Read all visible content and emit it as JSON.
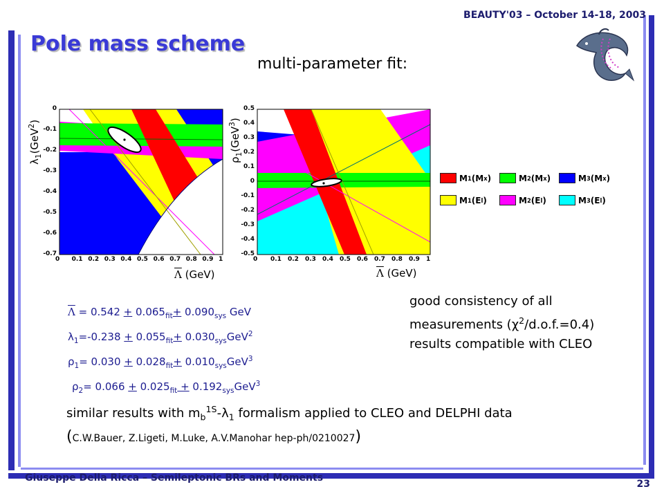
{
  "header": {
    "conference": "BEAUTY'03 – October 14-18, 2003"
  },
  "title": "Pole mass scheme",
  "subtitle": "multi-parameter fit:",
  "plots": [
    {
      "ylabel_sym": "λ",
      "ylabel_sub": "1",
      "ylabel_unit": "(GeV",
      "ylabel_pow": "2",
      "ylabel_close": ")",
      "xlabel_sym": "Λ",
      "xlabel_unit": " (GeV",
      "xlabel_close": ")",
      "x_ticks": [
        "0",
        "0.1",
        "0.2",
        "0.3",
        "0.4",
        "0.5",
        "0.6",
        "0.7",
        "0.8",
        "0.9",
        "1"
      ],
      "y_ticks": [
        "0",
        "-0.1",
        "-0.2",
        "-0.3",
        "-0.4",
        "-0.5",
        "-0.6",
        "-0.7"
      ]
    },
    {
      "ylabel_sym": "ρ",
      "ylabel_sub": "1",
      "ylabel_unit": "(GeV",
      "ylabel_pow": "3",
      "ylabel_close": ")",
      "xlabel_sym": "Λ",
      "xlabel_unit": " (GeV",
      "xlabel_close": ")",
      "x_ticks": [
        "0",
        "0.1",
        "0.2",
        "0.3",
        "0.4",
        "0.5",
        "0.6",
        "0.7",
        "0.8",
        "0.9",
        "1"
      ],
      "y_ticks": [
        "0.5",
        "0.4",
        "0.3",
        "0.2",
        "0.1",
        "0",
        "-0.1",
        "-0.2",
        "-0.3",
        "-0.4",
        "-0.5"
      ]
    }
  ],
  "legend": [
    {
      "label": "M",
      "sub": "1",
      "arg": "(M",
      "argsub": "x",
      "close": ")",
      "color": "#ff0000"
    },
    {
      "label": "M",
      "sub": "2",
      "arg": "(M",
      "argsub": "x",
      "close": ")",
      "color": "#00ff00"
    },
    {
      "label": "M",
      "sub": "3",
      "arg": "(M",
      "argsub": "x",
      "close": ")",
      "color": "#0000ff"
    },
    {
      "label": "M",
      "sub": "1",
      "arg": "(E",
      "argsub": "l",
      "close": ")",
      "color": "#ffff00"
    },
    {
      "label": "M",
      "sub": "2",
      "arg": "(E",
      "argsub": "l",
      "close": ")",
      "color": "#ff00ff"
    },
    {
      "label": "M",
      "sub": "3",
      "arg": "(E",
      "argsub": "l",
      "close": ")",
      "color": "#00ffff"
    }
  ],
  "results": [
    {
      "sym": "Λ",
      "sub": "",
      "eq": " = 0.542 ",
      "pm1": "+",
      "e1": " 0.065",
      "s1": "fit",
      "pm2": "+",
      "e2": " 0.090",
      "s2": "sys",
      "unit": " GeV",
      "pow": ""
    },
    {
      "sym": "λ",
      "sub": "1",
      "eq": "=-0.238 ",
      "pm1": "+",
      "e1": " 0.055",
      "s1": "fit",
      "pm2": "+",
      "e2": " 0.030",
      "s2": "sys",
      "unit": "GeV",
      "pow": "2"
    },
    {
      "sym": "ρ",
      "sub": "1",
      "eq": "= 0.030 ",
      "pm1": "+",
      "e1": " 0.028",
      "s1": "fit",
      "pm2": "+",
      "e2": " 0.010",
      "s2": "sys",
      "unit": "GeV",
      "pow": "3"
    },
    {
      "sym": "ρ",
      "sub": "2",
      "eq": "= 0.066 ",
      "pm1": "+",
      "e1": " 0.025",
      "s1": "fit",
      "pm2": " +",
      "e2": " 0.192",
      "s2": "sys",
      "unit": "GeV",
      "pow": "3"
    }
  ],
  "consistency": {
    "line1": "good consistency of all",
    "line2a": "measurements (",
    "chi": "χ",
    "chipow": "2",
    "line2b": "/d.o.f.=0.4)",
    "line3": "results compatible with CLEO"
  },
  "similar": {
    "a": "similar results with m",
    "bsub": "b",
    "bsup": "1S",
    "dash": "-",
    "lam": "λ",
    "lsub": "1",
    "b": " formalism applied to CLEO and DELPHI data",
    "open": "(",
    "ref": "C.W.Bauer, Z.Ligeti, M.Luke, A.V.Manohar  hep-ph/0210027",
    "close": ")"
  },
  "footer": {
    "author": "Giuseppe Della Ricca – Semileptonic BRs and Moments",
    "page": "23"
  }
}
